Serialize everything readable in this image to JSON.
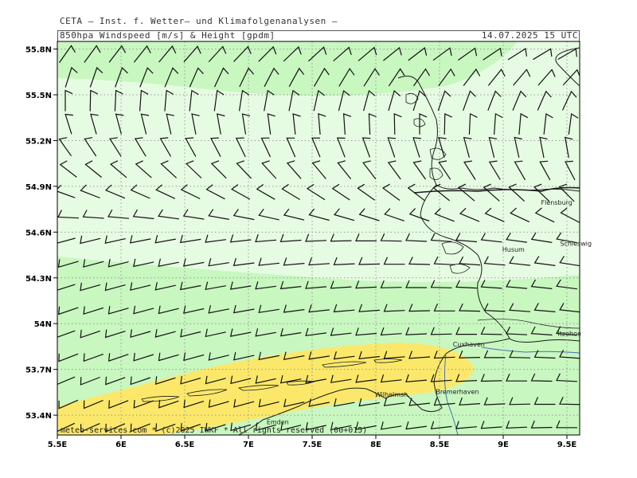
{
  "header": {
    "line1": "CETA – Inst. f. Wetter– und Klimafolgenanalysen –",
    "title": "850hpa Windspeed [m/s] & Height [gpdm]",
    "datetime": "14.07.2025 15 UTC"
  },
  "credit": "meteo-services.com * (c)2025 IWKF * All rights reserved (00+015)",
  "axes": {
    "lon_ticks": [
      "5.5E",
      "6E",
      "6.5E",
      "7E",
      "7.5E",
      "8E",
      "8.5E",
      "9E",
      "9.5E"
    ],
    "lat_ticks": [
      "53.4N",
      "53.7N",
      "54N",
      "54.3N",
      "54.6N",
      "54.9N",
      "55.2N",
      "55.5N",
      "55.8N"
    ]
  },
  "cities": [
    {
      "name": "Flensburg",
      "lon": 9.42,
      "lat": 54.78
    },
    {
      "name": "Schleswig",
      "lon": 9.57,
      "lat": 54.51
    },
    {
      "name": "Husum",
      "lon": 9.08,
      "lat": 54.47
    },
    {
      "name": "Itzehoe",
      "lon": 9.52,
      "lat": 53.92
    },
    {
      "name": "Cuxhaven",
      "lon": 8.73,
      "lat": 53.85
    },
    {
      "name": "Bremerhaven",
      "lon": 8.64,
      "lat": 53.54
    },
    {
      "name": "Wilhelmsh.",
      "lon": 8.13,
      "lat": 53.52
    },
    {
      "name": "Emden",
      "lon": 7.23,
      "lat": 53.34
    }
  ],
  "colors": {
    "band_light": "#e6fce2",
    "band_mid": "#c8f7c0",
    "band_yellow": "#fbe86a",
    "grid": "#999999",
    "barb": "#111111",
    "coast": "#1a1a1a",
    "river": "#4a6fb0"
  }
}
